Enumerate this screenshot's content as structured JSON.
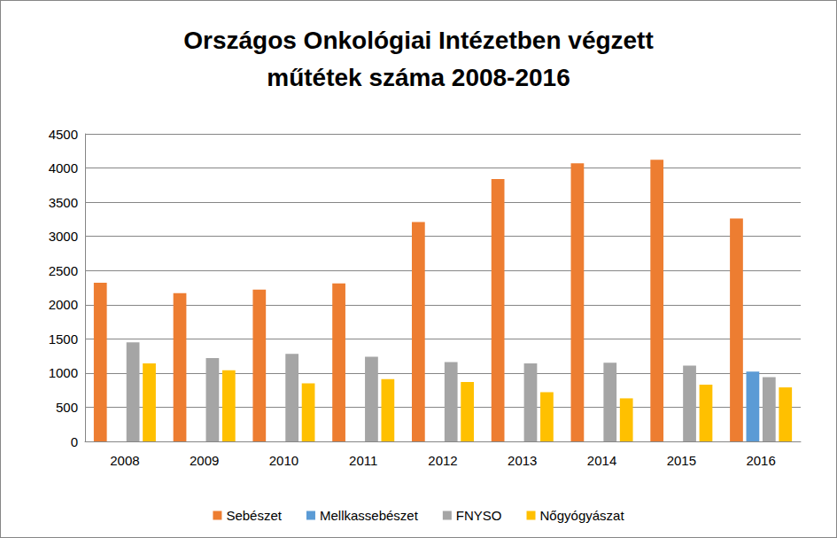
{
  "chart_data": {
    "type": "bar",
    "title": "Országos Onkológiai Intézetben végzett\nműtétek száma 2008-2016",
    "categories": [
      "2008",
      "2009",
      "2010",
      "2011",
      "2012",
      "2013",
      "2014",
      "2015",
      "2016"
    ],
    "series": [
      {
        "name": "Sebészet",
        "color": "#ed7d31",
        "values": [
          2320,
          2170,
          2220,
          2310,
          3210,
          3840,
          4070,
          4120,
          3260
        ]
      },
      {
        "name": "Mellkassebészet",
        "color": "#5b9bd5",
        "values": [
          0,
          0,
          0,
          0,
          0,
          0,
          0,
          0,
          1020
        ]
      },
      {
        "name": "FNYSO",
        "color": "#a5a5a5",
        "values": [
          1450,
          1220,
          1280,
          1240,
          1160,
          1140,
          1150,
          1110,
          940
        ]
      },
      {
        "name": "Nőgyógyászat",
        "color": "#ffc000",
        "values": [
          1140,
          1040,
          850,
          910,
          870,
          720,
          630,
          830,
          790
        ]
      }
    ],
    "ylim": [
      0,
      4500
    ],
    "yticks": [
      0,
      500,
      1000,
      1500,
      2000,
      2500,
      3000,
      3500,
      4000,
      4500
    ],
    "grid": true,
    "legend": "bottom"
  }
}
